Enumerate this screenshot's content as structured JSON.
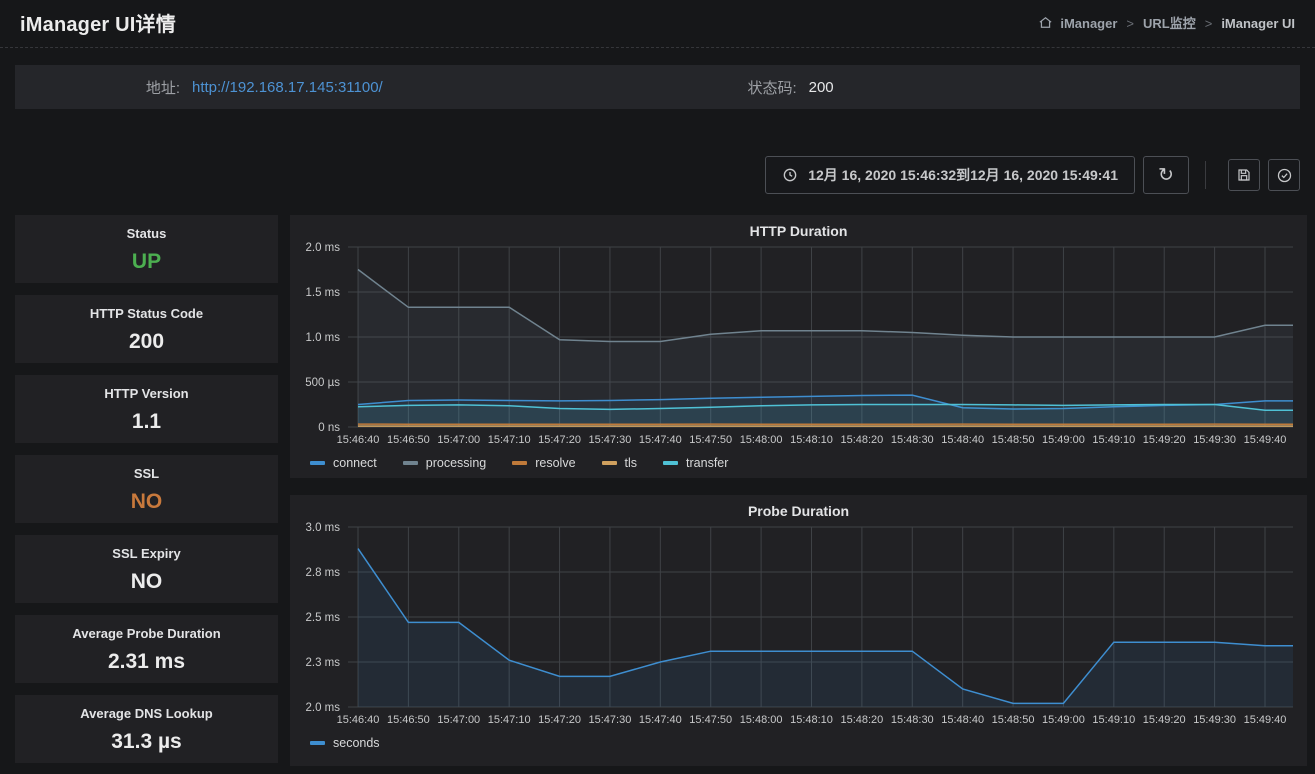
{
  "page": {
    "title": "iManager UI详情",
    "breadcrumb": {
      "separator": ">",
      "items": [
        "iManager",
        "URL监控",
        "iManager UI"
      ]
    }
  },
  "info_bar": {
    "address_label": "地址:",
    "address_value": "http://192.168.17.145:31100/",
    "status_label": "状态码:",
    "status_value": "200"
  },
  "toolbar": {
    "time_range": "12月 16, 2020 15:46:32到12月 16, 2020 15:49:41",
    "icons": [
      "clock-icon",
      "refresh-icon",
      "save-icon",
      "check-circle-icon"
    ]
  },
  "colors": {
    "background": "#161719",
    "panel": "#212124",
    "grid": "#3f4246",
    "link": "#4d92d3",
    "up_green": "#4caf50",
    "ssl_orange": "#c8793c"
  },
  "stats": [
    {
      "title": "Status",
      "value": "UP",
      "color": "#4caf50"
    },
    {
      "title": "HTTP Status Code",
      "value": "200",
      "color": "#ececec"
    },
    {
      "title": "HTTP Version",
      "value": "1.1",
      "color": "#ececec"
    },
    {
      "title": "SSL",
      "value": "NO",
      "color": "#c8793c"
    },
    {
      "title": "SSL Expiry",
      "value": "NO",
      "color": "#ececec"
    },
    {
      "title": "Average Probe Duration",
      "value": "2.31 ms",
      "color": "#ececec"
    },
    {
      "title": "Average DNS Lookup",
      "value": "31.3 µs",
      "color": "#ececec"
    }
  ],
  "chart_data": [
    {
      "type": "line",
      "title": "HTTP Duration",
      "unit": "µs",
      "grid": true,
      "legend_position": "bottom-left",
      "ylim": [
        0,
        2000
      ],
      "y_ticks": [
        {
          "value": 0,
          "label": "0 ns"
        },
        {
          "value": 500,
          "label": "500 µs"
        },
        {
          "value": 1000,
          "label": "1.0 ms"
        },
        {
          "value": 1500,
          "label": "1.5 ms"
        },
        {
          "value": 2000,
          "label": "2.0 ms"
        }
      ],
      "x": [
        "15:46:40",
        "15:46:50",
        "15:47:00",
        "15:47:10",
        "15:47:20",
        "15:47:30",
        "15:47:40",
        "15:47:50",
        "15:48:00",
        "15:48:10",
        "15:48:20",
        "15:48:30",
        "15:48:40",
        "15:48:50",
        "15:49:00",
        "15:49:10",
        "15:49:20",
        "15:49:30",
        "15:49:40"
      ],
      "series": [
        {
          "name": "connect",
          "color": "#3e8ed0",
          "values": [
            250,
            295,
            300,
            295,
            290,
            295,
            305,
            320,
            330,
            340,
            350,
            355,
            215,
            200,
            205,
            225,
            240,
            250,
            290
          ]
        },
        {
          "name": "processing",
          "color": "#70838f",
          "values": [
            1750,
            1330,
            1330,
            1330,
            970,
            950,
            950,
            1030,
            1070,
            1070,
            1070,
            1050,
            1020,
            1000,
            1000,
            1000,
            1000,
            1000,
            1130
          ]
        },
        {
          "name": "resolve",
          "color": "#c07a3a",
          "values": [
            32,
            31,
            31,
            30,
            30,
            31,
            31,
            32,
            31,
            31,
            30,
            31,
            32,
            31,
            30,
            31,
            31,
            32,
            31
          ]
        },
        {
          "name": "tls",
          "color": "#cfa05e",
          "values": [
            10,
            10,
            10,
            10,
            10,
            10,
            10,
            10,
            10,
            10,
            10,
            10,
            10,
            10,
            10,
            10,
            10,
            10,
            10
          ]
        },
        {
          "name": "transfer",
          "color": "#4fc1d5",
          "values": [
            225,
            240,
            245,
            235,
            205,
            195,
            205,
            220,
            235,
            245,
            250,
            250,
            250,
            245,
            240,
            245,
            250,
            250,
            185
          ]
        }
      ]
    },
    {
      "type": "line",
      "title": "Probe Duration",
      "unit": "ms",
      "grid": true,
      "legend_position": "bottom-left",
      "ylim": [
        2.0,
        3.0
      ],
      "y_ticks": [
        {
          "value": 2.0,
          "label": "2.0 ms"
        },
        {
          "value": 2.25,
          "label": "2.3 ms"
        },
        {
          "value": 2.5,
          "label": "2.5 ms"
        },
        {
          "value": 2.75,
          "label": "2.8 ms"
        },
        {
          "value": 3.0,
          "label": "3.0 ms"
        }
      ],
      "x": [
        "15:46:40",
        "15:46:50",
        "15:47:00",
        "15:47:10",
        "15:47:20",
        "15:47:30",
        "15:47:40",
        "15:47:50",
        "15:48:00",
        "15:48:10",
        "15:48:20",
        "15:48:30",
        "15:48:40",
        "15:48:50",
        "15:49:00",
        "15:49:10",
        "15:49:20",
        "15:49:30",
        "15:49:40"
      ],
      "series": [
        {
          "name": "seconds",
          "color": "#3e8ed0",
          "values": [
            2.88,
            2.47,
            2.47,
            2.26,
            2.17,
            2.17,
            2.25,
            2.31,
            2.31,
            2.31,
            2.31,
            2.31,
            2.1,
            2.02,
            2.02,
            2.36,
            2.36,
            2.36,
            2.34
          ]
        }
      ]
    }
  ]
}
